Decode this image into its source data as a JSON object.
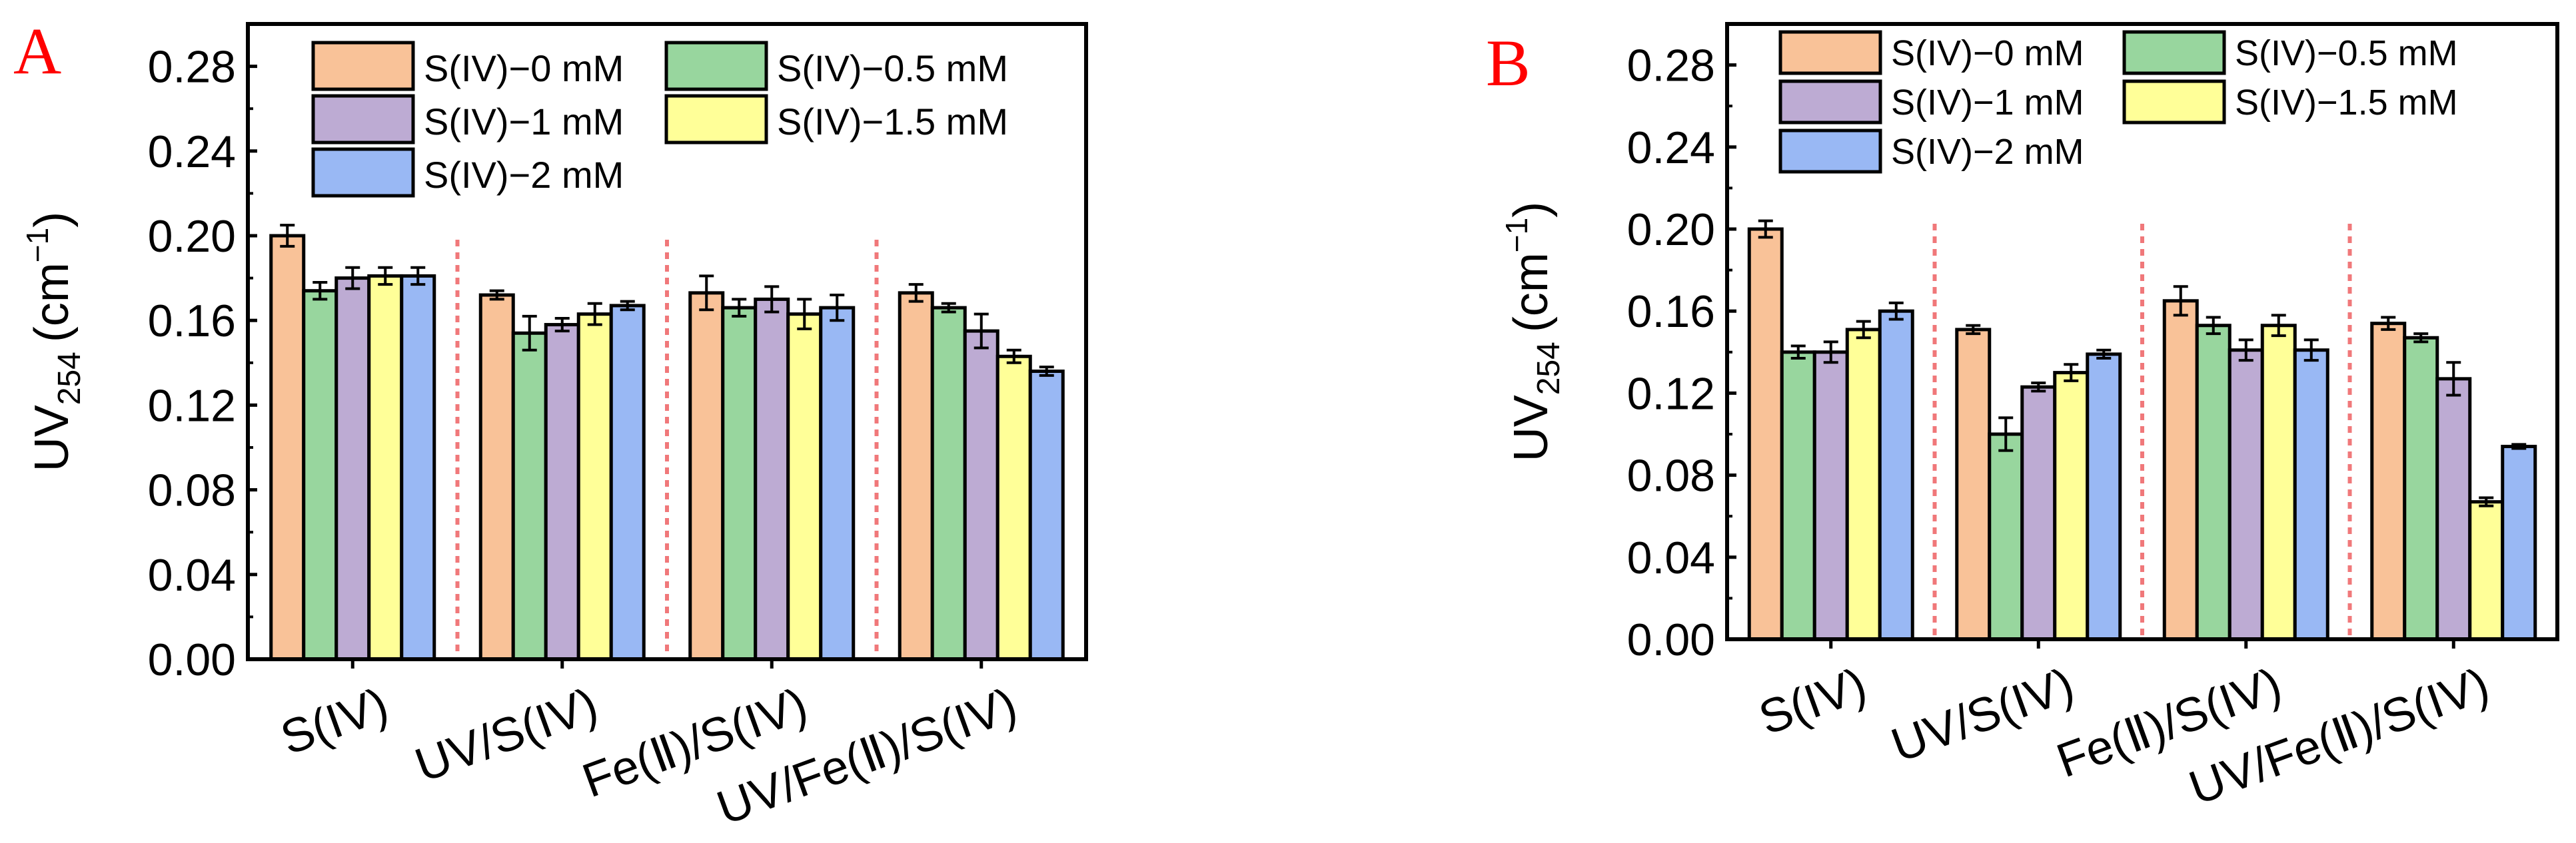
{
  "figure": {
    "colors": {
      "series": [
        "#F9C298",
        "#98D69E",
        "#BDABD3",
        "#FFFF98",
        "#99B8F4"
      ],
      "separator": "#F0787A",
      "panel_letter": "#FF0000"
    }
  },
  "chart_data": [
    {
      "type": "bar",
      "panel_label": "A",
      "title": "",
      "ylabel": "UV",
      "ylabel_sub": "254",
      "ylabel_unit_pre": "(cm",
      "ylabel_unit_sup": "−1",
      "ylabel_unit_post": ")",
      "xlabel": "",
      "ylim": [
        0,
        0.3
      ],
      "yticks": [
        "0.00",
        "0.04",
        "0.08",
        "0.12",
        "0.16",
        "0.20",
        "0.24",
        "0.28"
      ],
      "categories": [
        "S(IV)",
        "UV/S(IV)",
        "Fe(Ⅱ)/S(IV)",
        "UV/Fe(Ⅱ)/S(IV)"
      ],
      "legend": {
        "placement": "top",
        "columns": 2,
        "rows": 3
      },
      "series": [
        {
          "name": "S(IV)−0 mM",
          "values": [
            0.2,
            0.172,
            0.173,
            0.173
          ],
          "errors": [
            0.005,
            0.002,
            0.008,
            0.004
          ]
        },
        {
          "name": "S(IV)−0.5 mM",
          "values": [
            0.174,
            0.154,
            0.166,
            0.166
          ],
          "errors": [
            0.004,
            0.008,
            0.004,
            0.002
          ]
        },
        {
          "name": "S(IV)−1 mM",
          "values": [
            0.18,
            0.158,
            0.17,
            0.155
          ],
          "errors": [
            0.005,
            0.003,
            0.006,
            0.008
          ]
        },
        {
          "name": "S(IV)−1.5 mM",
          "values": [
            0.181,
            0.163,
            0.163,
            0.143
          ],
          "errors": [
            0.004,
            0.005,
            0.007,
            0.003
          ]
        },
        {
          "name": "S(IV)−2 mM",
          "values": [
            0.181,
            0.167,
            0.166,
            0.136
          ],
          "errors": [
            0.004,
            0.002,
            0.006,
            0.002
          ]
        }
      ]
    },
    {
      "type": "bar",
      "panel_label": "B",
      "title": "",
      "ylabel": "UV",
      "ylabel_sub": "254",
      "ylabel_unit_pre": "(cm",
      "ylabel_unit_sup": "−1",
      "ylabel_unit_post": ")",
      "xlabel": "",
      "ylim": [
        0,
        0.3
      ],
      "yticks": [
        "0.00",
        "0.04",
        "0.08",
        "0.12",
        "0.16",
        "0.20",
        "0.24",
        "0.28"
      ],
      "categories": [
        "S(IV)",
        "UV/S(IV)",
        "Fe(Ⅱ)/S(IV)",
        "UV/Fe(Ⅱ)/S(IV)"
      ],
      "legend": {
        "placement": "top",
        "columns": 2,
        "rows": 3
      },
      "series": [
        {
          "name": "S(IV)−0 mM",
          "values": [
            0.2,
            0.151,
            0.165,
            0.154
          ],
          "errors": [
            0.004,
            0.002,
            0.007,
            0.003
          ]
        },
        {
          "name": "S(IV)−0.5 mM",
          "values": [
            0.14,
            0.1,
            0.153,
            0.147
          ],
          "errors": [
            0.003,
            0.008,
            0.004,
            0.002
          ]
        },
        {
          "name": "S(IV)−1 mM",
          "values": [
            0.14,
            0.123,
            0.141,
            0.127
          ],
          "errors": [
            0.005,
            0.002,
            0.005,
            0.008
          ]
        },
        {
          "name": "S(IV)−1.5 mM",
          "values": [
            0.151,
            0.13,
            0.153,
            0.067
          ],
          "errors": [
            0.004,
            0.004,
            0.005,
            0.002
          ]
        },
        {
          "name": "S(IV)−2 mM",
          "values": [
            0.16,
            0.139,
            0.141,
            0.094
          ],
          "errors": [
            0.004,
            0.002,
            0.005,
            0.001
          ]
        }
      ]
    }
  ]
}
